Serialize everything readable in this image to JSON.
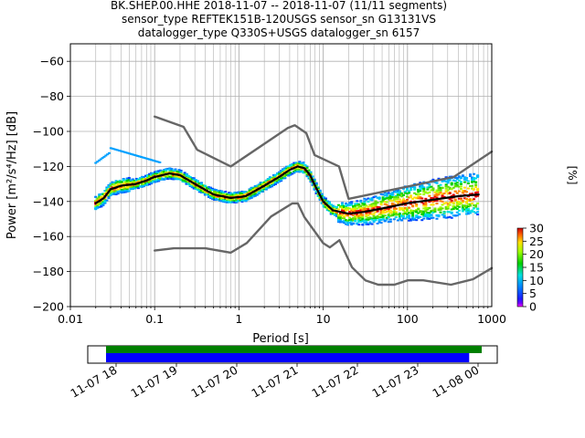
{
  "title": {
    "line1": "BK.SHEP.00.HHE   2018-11-07 -- 2018-11-07  (11/11 segments)",
    "line2": "sensor_type REFTEK151B-120USGS sensor_sn G13131VS",
    "line3": "datalogger_type Q330S+USGS datalogger_sn 6157"
  },
  "chart_data": {
    "type": "line",
    "xscale": "log",
    "xlabel": "Period [s]",
    "ylabel": "Power [m²/s⁴/Hz] [dB]",
    "xlim": [
      0.01,
      1000
    ],
    "ylim": [
      -200,
      -50
    ],
    "x_tick_labels": [
      "0.01",
      "0.1",
      "1",
      "10",
      "100",
      "1000"
    ],
    "y_tick_labels": [
      "-200",
      "-180",
      "-160",
      "-140",
      "-120",
      "-100",
      "-80",
      "-60"
    ],
    "grid": true,
    "series": [
      {
        "role": "mean-psd",
        "color": "#000000",
        "x": [
          0.02,
          0.025,
          0.03,
          0.04,
          0.06,
          0.08,
          0.1,
          0.15,
          0.2,
          0.3,
          0.5,
          0.8,
          1.2,
          2,
          3,
          4,
          5,
          6,
          7,
          8,
          10,
          13,
          20,
          30,
          50,
          100,
          200,
          400,
          700
        ],
        "y": [
          -141,
          -138,
          -133,
          -131,
          -130,
          -128,
          -126,
          -124,
          -125,
          -130,
          -136,
          -138,
          -137,
          -131,
          -126,
          -122,
          -120,
          -121,
          -125,
          -131,
          -140,
          -145,
          -147,
          -146,
          -144,
          -141,
          -139,
          -137,
          -136
        ]
      },
      {
        "role": "noise-model-high",
        "color": "#666666",
        "x": [
          0.1,
          0.22,
          0.32,
          0.8,
          3.8,
          4.6,
          6.3,
          7.9,
          15.4,
          20,
          354.8,
          1000
        ],
        "y": [
          -91.5,
          -97.4,
          -110.5,
          -120,
          -98,
          -96.5,
          -101,
          -113.5,
          -120.0,
          -138.5,
          -126.0,
          -111.5
        ]
      },
      {
        "role": "noise-model-low",
        "color": "#666666",
        "x": [
          0.1,
          0.17,
          0.4,
          0.8,
          1.24,
          2.4,
          4.3,
          5.0,
          6.0,
          10.0,
          12.0,
          15.6,
          21.9,
          31.6,
          45.0,
          70.0,
          101.0,
          154.0,
          328.0,
          600.0,
          1000.0
        ],
        "y": [
          -168.0,
          -166.7,
          -166.7,
          -169.2,
          -163.7,
          -148.6,
          -141.1,
          -141.1,
          -149.0,
          -163.8,
          -166.2,
          -162.1,
          -177.5,
          -185.0,
          -187.5,
          -187.5,
          -185.0,
          -185.0,
          -187.5,
          -184.4,
          -178.0
        ]
      }
    ],
    "colorbar": {
      "unit_label": "[%]",
      "min": 0,
      "max": 30,
      "ticks": [
        "0",
        "5",
        "10",
        "15",
        "20",
        "25",
        "30"
      ]
    },
    "timeline": {
      "tick_labels": [
        "11-07 18",
        "11-07 19",
        "11-07 20",
        "11-07 21",
        "11-07 22",
        "11-07 23",
        "11-08 00"
      ],
      "bars": [
        {
          "role": "data-coverage",
          "color": "#008000",
          "start_hours": 0.0,
          "end_hours": 6.0
        },
        {
          "role": "psd-segments",
          "color": "#0000ff",
          "start_hours": 0.0,
          "end_hours": 5.8
        }
      ]
    }
  }
}
